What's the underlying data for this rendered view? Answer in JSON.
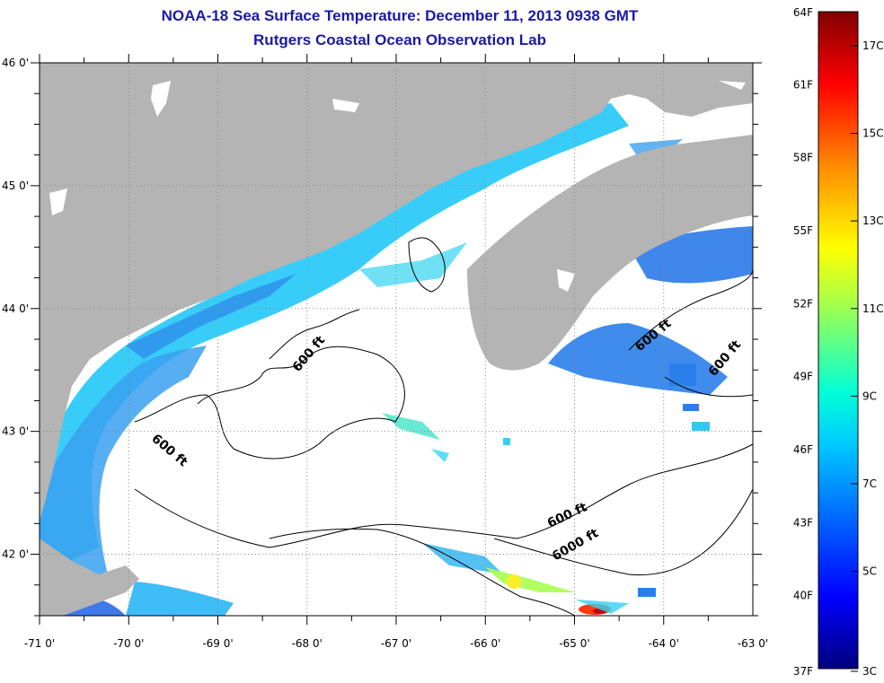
{
  "header": {
    "title": "NOAA-18 Sea Surface Temperature:  December 11, 2013 0938 GMT",
    "subtitle": "Rutgers Coastal Ocean Observation Lab"
  },
  "map": {
    "lon_range": [
      -71,
      -63
    ],
    "lat_range": [
      41.5,
      46
    ],
    "lat_ticks": [
      "46 0'",
      "45 0'",
      "44 0'",
      "43 0'",
      "42 0'"
    ],
    "lon_ticks": [
      "-71 0'",
      "-70 0'",
      "-69 0'",
      "-68 0'",
      "-67 0'",
      "-66 0'",
      "-65 0'",
      "-64 0'",
      "-63 0'"
    ],
    "contour_labels": [
      "600 ft",
      "600 ft",
      "600 ft",
      "600 ft",
      "600 ft",
      "6000 ft"
    ],
    "colors": {
      "land": "#b4b4b4",
      "ocean_no_data": "#ffffff",
      "contour": "#000000"
    }
  },
  "colorbar": {
    "fahrenheit": [
      "64F",
      "61F",
      "58F",
      "55F",
      "52F",
      "49F",
      "46F",
      "43F",
      "40F",
      "37F"
    ],
    "celsius": [
      "17C",
      "15C",
      "13C",
      "11C",
      "9C",
      "7C",
      "5C",
      "3C"
    ],
    "colormap": "jet"
  }
}
